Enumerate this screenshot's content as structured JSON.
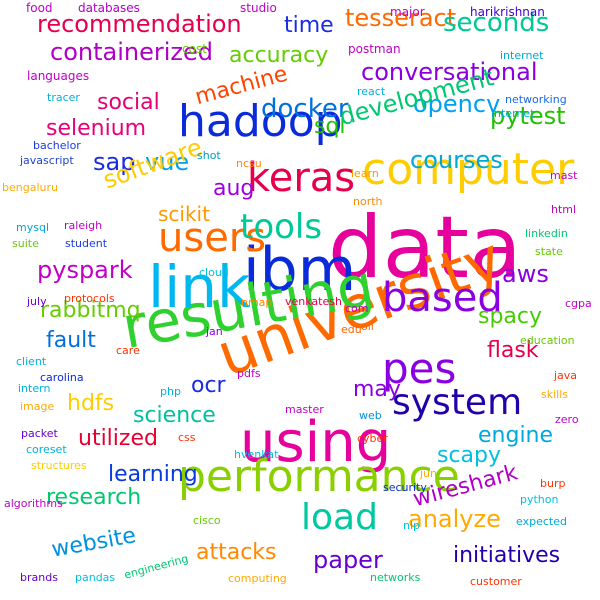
{
  "words": [
    {
      "text": "data",
      "color": "#e6009c"
    },
    {
      "text": "ibm",
      "color": "#0a2bd9"
    },
    {
      "text": "university",
      "color": "#ff6a00"
    },
    {
      "text": "resulting",
      "color": "#2ed12e"
    },
    {
      "text": "using",
      "color": "#e6009c"
    },
    {
      "text": "link",
      "color": "#00b8f0"
    },
    {
      "text": "performance",
      "color": "#8ad000"
    },
    {
      "text": "computer",
      "color": "#ffcc00"
    },
    {
      "text": "hadoop",
      "color": "#0a2bd9"
    },
    {
      "text": "keras",
      "color": "#e6004c"
    },
    {
      "text": "based",
      "color": "#8a00e0"
    },
    {
      "text": "users",
      "color": "#ff6a00"
    },
    {
      "text": "tools",
      "color": "#00c896"
    },
    {
      "text": "system",
      "color": "#2200aa"
    },
    {
      "text": "pes",
      "color": "#8a00e0"
    },
    {
      "text": "load",
      "color": "#00c8a0"
    },
    {
      "text": "recommendation",
      "color": "#e6004c"
    },
    {
      "text": "containerized",
      "color": "#b000c8"
    },
    {
      "text": "tesseract",
      "color": "#ff6a00"
    },
    {
      "text": "seconds",
      "color": "#00c896"
    },
    {
      "text": "conversational",
      "color": "#8a00e0"
    },
    {
      "text": "machine",
      "color": "#ff4400"
    },
    {
      "text": "accuracy",
      "color": "#66cc00"
    },
    {
      "text": "time",
      "color": "#1a2ce0"
    },
    {
      "text": "docker",
      "color": "#0070e0"
    },
    {
      "text": "social",
      "color": "#e60078"
    },
    {
      "text": "selenium",
      "color": "#e6007a"
    },
    {
      "text": "opencv",
      "color": "#00a0f0"
    },
    {
      "text": "sql",
      "color": "#22c000"
    },
    {
      "text": "development",
      "color": "#00c870"
    },
    {
      "text": "pytest",
      "color": "#22c000"
    },
    {
      "text": "sap",
      "color": "#1a2ce0"
    },
    {
      "text": "vue",
      "color": "#00a0f0"
    },
    {
      "text": "software",
      "color": "#ffcc00"
    },
    {
      "text": "courses",
      "color": "#00a8d8"
    },
    {
      "text": "aug",
      "color": "#a000e0"
    },
    {
      "text": "scikit",
      "color": "#ff9900"
    },
    {
      "text": "pyspark",
      "color": "#c000c8"
    },
    {
      "text": "aws",
      "color": "#8a00e0"
    },
    {
      "text": "spacy",
      "color": "#44cc00"
    },
    {
      "text": "rabbitmq",
      "color": "#66cc00"
    },
    {
      "text": "fault",
      "color": "#0070e0"
    },
    {
      "text": "flask",
      "color": "#e6004c"
    },
    {
      "text": "may",
      "color": "#8a00e0"
    },
    {
      "text": "ocr",
      "color": "#1a2ce0"
    },
    {
      "text": "hdfs",
      "color": "#ffcc00"
    },
    {
      "text": "science",
      "color": "#00c0a0"
    },
    {
      "text": "engine",
      "color": "#00a8e0"
    },
    {
      "text": "scapy",
      "color": "#00c0e0"
    },
    {
      "text": "utilized",
      "color": "#e60030"
    },
    {
      "text": "learning",
      "color": "#0a3ad9"
    },
    {
      "text": "research",
      "color": "#00c870"
    },
    {
      "text": "wireshark",
      "color": "#b000c8"
    },
    {
      "text": "analyze",
      "color": "#ffaa00"
    },
    {
      "text": "website",
      "color": "#0090e0"
    },
    {
      "text": "attacks",
      "color": "#ff8800"
    },
    {
      "text": "paper",
      "color": "#6a00d0"
    },
    {
      "text": "initiatives",
      "color": "#2200aa"
    },
    {
      "text": "food",
      "color": "#c000c8"
    },
    {
      "text": "databases",
      "color": "#b000c8"
    },
    {
      "text": "studio",
      "color": "#c000c8"
    },
    {
      "text": "major",
      "color": "#c000c8"
    },
    {
      "text": "harikrishnan",
      "color": "#4400cc"
    },
    {
      "text": "cost",
      "color": "#66cc00"
    },
    {
      "text": "postman",
      "color": "#c000c8"
    },
    {
      "text": "internet",
      "color": "#00a8d8"
    },
    {
      "text": "languages",
      "color": "#c000c8"
    },
    {
      "text": "tracer",
      "color": "#00b0e0"
    },
    {
      "text": "react",
      "color": "#00b0e0"
    },
    {
      "text": "networking",
      "color": "#1a6ae0"
    },
    {
      "text": "internet",
      "color": "#00a8d8"
    },
    {
      "text": "bachelor",
      "color": "#1a3ce0"
    },
    {
      "text": "javascript",
      "color": "#2244cc"
    },
    {
      "text": "shot",
      "color": "#00a0c0"
    },
    {
      "text": "ncsu",
      "color": "#ff8800"
    },
    {
      "text": "learn",
      "color": "#ff9900"
    },
    {
      "text": "mast",
      "color": "#c000c8"
    },
    {
      "text": "bengaluru",
      "color": "#ffaa00"
    },
    {
      "text": "north",
      "color": "#ff8800"
    },
    {
      "text": "html",
      "color": "#c000c8"
    },
    {
      "text": "mysql",
      "color": "#00a8d8"
    },
    {
      "text": "raleigh",
      "color": "#c000c8"
    },
    {
      "text": "suite",
      "color": "#66cc00"
    },
    {
      "text": "student",
      "color": "#1a3ce0"
    },
    {
      "text": "linkedin",
      "color": "#00c870"
    },
    {
      "text": "state",
      "color": "#66cc00"
    },
    {
      "text": "cloud",
      "color": "#00c0e0"
    },
    {
      "text": "july",
      "color": "#6a00d0"
    },
    {
      "text": "protocols",
      "color": "#ff3300"
    },
    {
      "text": "nmap",
      "color": "#ff8800"
    },
    {
      "text": "venkatesh",
      "color": "#e6004c"
    },
    {
      "text": "com",
      "color": "#c000c8"
    },
    {
      "text": "cgpa",
      "color": "#c000c8"
    },
    {
      "text": "jan",
      "color": "#8a00e0"
    },
    {
      "text": "edu",
      "color": "#ff6600"
    },
    {
      "text": "oil",
      "color": "#ff6600"
    },
    {
      "text": "education",
      "color": "#66cc00"
    },
    {
      "text": "care",
      "color": "#ff3300"
    },
    {
      "text": "client",
      "color": "#00b0e0"
    },
    {
      "text": "pdfs",
      "color": "#c000c8"
    },
    {
      "text": "carolina",
      "color": "#0a2bd9"
    },
    {
      "text": "intern",
      "color": "#00b0e0"
    },
    {
      "text": "php",
      "color": "#00b0e0"
    },
    {
      "text": "java",
      "color": "#ff3300"
    },
    {
      "text": "image",
      "color": "#ffaa00"
    },
    {
      "text": "skills",
      "color": "#ffaa00"
    },
    {
      "text": "master",
      "color": "#c000c8"
    },
    {
      "text": "web",
      "color": "#0090e0"
    },
    {
      "text": "zero",
      "color": "#c000c8"
    },
    {
      "text": "packet",
      "color": "#6a00d0"
    },
    {
      "text": "css",
      "color": "#ff3300"
    },
    {
      "text": "cyber",
      "color": "#ff3300"
    },
    {
      "text": "coreset",
      "color": "#00b0e0"
    },
    {
      "text": "hvenkat",
      "color": "#00c0e0"
    },
    {
      "text": "jun",
      "color": "#ffaa00"
    },
    {
      "text": "structures",
      "color": "#ffcc00"
    },
    {
      "text": "security",
      "color": "#0a2bd9"
    },
    {
      "text": "burp",
      "color": "#ff3300"
    },
    {
      "text": "algorithms",
      "color": "#c000c8"
    },
    {
      "text": "cisco",
      "color": "#66cc00"
    },
    {
      "text": "python",
      "color": "#00c0e0"
    },
    {
      "text": "nlp",
      "color": "#00c0e0"
    },
    {
      "text": "expected",
      "color": "#00a8d8"
    },
    {
      "text": "brands",
      "color": "#6a00d0"
    },
    {
      "text": "pandas",
      "color": "#00c0e0"
    },
    {
      "text": "engineering",
      "color": "#00c870"
    },
    {
      "text": "computing",
      "color": "#ffaa00"
    },
    {
      "text": "networks",
      "color": "#00c870"
    },
    {
      "text": "customer",
      "color": "#ff3300"
    }
  ]
}
